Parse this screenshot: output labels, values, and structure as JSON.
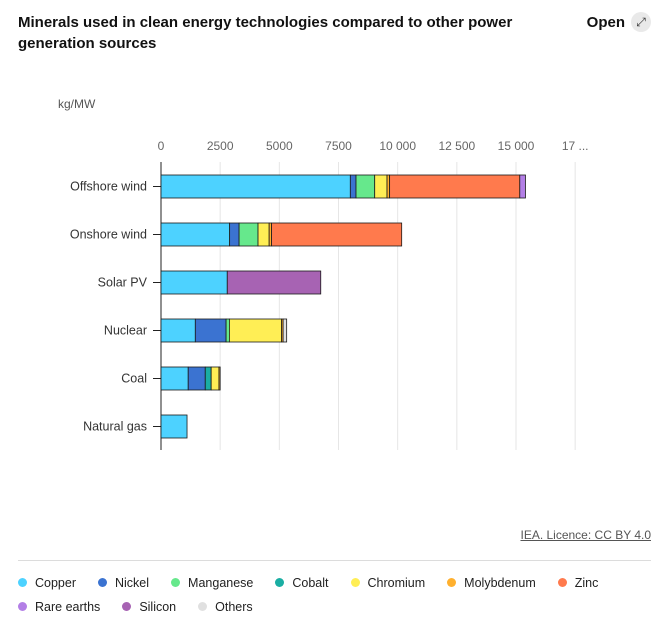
{
  "header": {
    "title": "Minerals used in clean energy technologies compared to other power generation sources",
    "open_label": "Open",
    "open_icon": "expand-icon"
  },
  "unit_label": "kg/MW",
  "source": "IEA. Licence: CC BY 4.0",
  "colors": {
    "Copper": "#4dd2ff",
    "Nickel": "#3b73d1",
    "Manganese": "#66e88c",
    "Cobalt": "#1aaea3",
    "Chromium": "#ffee55",
    "Molybdenum": "#ffb02e",
    "Zinc": "#ff7a4d",
    "Rare earths": "#b37fe6",
    "Silicon": "#a763b3",
    "Others": "#e0e0e0"
  },
  "chart_data": {
    "type": "bar",
    "orientation": "horizontal",
    "stacked": true,
    "title": "Minerals used in clean energy technologies compared to other power generation sources",
    "xlabel": "kg/MW",
    "x_ticks": [
      "0",
      "2500",
      "5000",
      "7500",
      "10 000",
      "12 500",
      "15 000",
      "17 ..."
    ],
    "xlim": [
      0,
      17500
    ],
    "grid": true,
    "legend_position": "bottom",
    "categories": [
      "Offshore wind",
      "Onshore wind",
      "Solar PV",
      "Nuclear",
      "Coal",
      "Natural gas"
    ],
    "series": [
      {
        "name": "Copper",
        "values": [
          8000,
          2900,
          2800,
          1450,
          1150,
          1100
        ]
      },
      {
        "name": "Nickel",
        "values": [
          240,
          400,
          0,
          1300,
          720,
          0
        ]
      },
      {
        "name": "Manganese",
        "values": [
          790,
          800,
          0,
          140,
          0,
          0
        ]
      },
      {
        "name": "Cobalt",
        "values": [
          0,
          0,
          0,
          0,
          250,
          0
        ]
      },
      {
        "name": "Chromium",
        "values": [
          520,
          470,
          0,
          2200,
          330,
          0
        ]
      },
      {
        "name": "Molybdenum",
        "values": [
          110,
          100,
          0,
          70,
          50,
          0
        ]
      },
      {
        "name": "Zinc",
        "values": [
          5500,
          5500,
          0,
          0,
          0,
          0
        ]
      },
      {
        "name": "Rare earths",
        "values": [
          240,
          0,
          0,
          0,
          0,
          0
        ]
      },
      {
        "name": "Silicon",
        "values": [
          0,
          0,
          3950,
          0,
          0,
          0
        ]
      },
      {
        "name": "Others",
        "values": [
          0,
          0,
          0,
          150,
          0,
          0
        ]
      }
    ]
  },
  "legend": [
    {
      "label": "Copper"
    },
    {
      "label": "Nickel"
    },
    {
      "label": "Manganese"
    },
    {
      "label": "Cobalt"
    },
    {
      "label": "Chromium"
    },
    {
      "label": "Molybdenum"
    },
    {
      "label": "Zinc"
    },
    {
      "label": "Rare earths"
    },
    {
      "label": "Silicon"
    },
    {
      "label": "Others"
    }
  ]
}
